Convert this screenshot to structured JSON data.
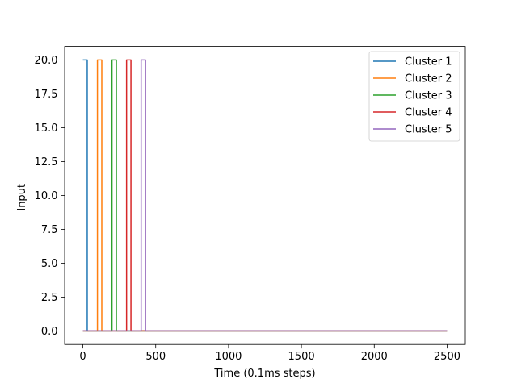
{
  "chart_data": {
    "type": "line",
    "title": "",
    "xlabel": "Time (0.1ms steps)",
    "ylabel": "Input",
    "xlim": [
      -125,
      2625
    ],
    "ylim": [
      -1.0,
      21.0
    ],
    "x_ticks": [
      0,
      500,
      1000,
      1500,
      2000,
      2500
    ],
    "x_tick_labels": [
      "0",
      "500",
      "1000",
      "1500",
      "2000",
      "2500"
    ],
    "y_ticks": [
      0.0,
      2.5,
      5.0,
      7.5,
      10.0,
      12.5,
      15.0,
      17.5,
      20.0
    ],
    "y_tick_labels": [
      "0.0",
      "2.5",
      "5.0",
      "7.5",
      "10.0",
      "12.5",
      "15.0",
      "17.5",
      "20.0"
    ],
    "grid": false,
    "legend_position": "top-right",
    "series": [
      {
        "name": "Cluster 1",
        "color": "#1f77b4",
        "x": [
          0,
          30,
          30,
          2500
        ],
        "y": [
          20,
          20,
          0,
          0
        ]
      },
      {
        "name": "Cluster 2",
        "color": "#ff7f0e",
        "x": [
          0,
          100,
          100,
          130,
          130,
          2500
        ],
        "y": [
          0,
          0,
          20,
          20,
          0,
          0
        ]
      },
      {
        "name": "Cluster 3",
        "color": "#2ca02c",
        "x": [
          0,
          200,
          200,
          230,
          230,
          2500
        ],
        "y": [
          0,
          0,
          20,
          20,
          0,
          0
        ]
      },
      {
        "name": "Cluster 4",
        "color": "#d62728",
        "x": [
          0,
          300,
          300,
          330,
          330,
          2500
        ],
        "y": [
          0,
          0,
          20,
          20,
          0,
          0
        ]
      },
      {
        "name": "Cluster 5",
        "color": "#9467bd",
        "x": [
          0,
          400,
          400,
          430,
          430,
          2500
        ],
        "y": [
          0,
          0,
          20,
          20,
          0,
          0
        ]
      }
    ]
  }
}
